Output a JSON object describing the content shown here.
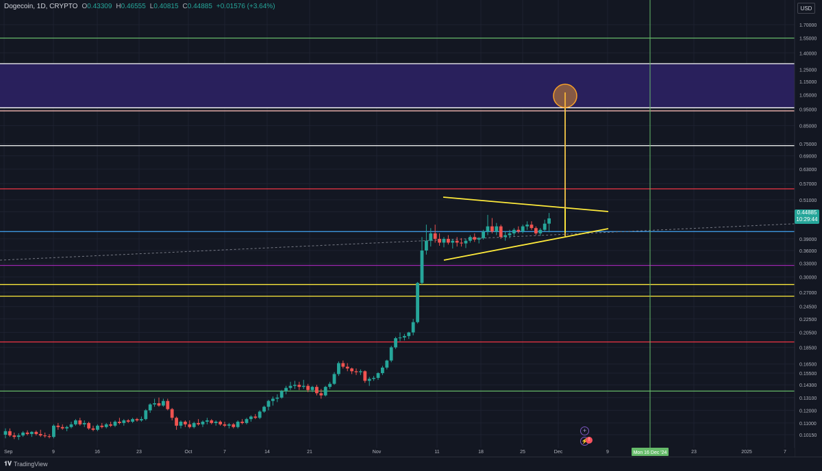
{
  "header": {
    "symbol": "Dogecoin, 1D, CRYPTO",
    "open_label": "O",
    "open": "0.43309",
    "high_label": "H",
    "high": "0.46555",
    "low_label": "L",
    "low": "0.40815",
    "close_label": "C",
    "close": "0.44885",
    "change": "+0.01576 (+3.64%)"
  },
  "currency": "USD",
  "last_price_badge": {
    "price": "0.44885",
    "countdown": "10:29:44"
  },
  "watermark": "TradingView",
  "colors": {
    "up": "#26a69a",
    "down": "#ef5350",
    "background": "#131722",
    "accent": "#f7c948"
  },
  "chart_data": {
    "type": "candlestick",
    "scale": "log",
    "price_axis_ticks": [
      "1.70000",
      "1.55000",
      "1.40000",
      "1.25000",
      "1.15000",
      "1.05000",
      "0.95000",
      "0.85000",
      "0.75000",
      "0.69000",
      "0.63000",
      "0.57000",
      "0.51000",
      "0.47000",
      "0.39000",
      "0.36000",
      "0.33000",
      "0.30000",
      "0.27000",
      "0.24500",
      "0.22500",
      "0.20500",
      "0.18500",
      "0.16500",
      "0.15500",
      "0.14300",
      "0.13100",
      "0.12000",
      "0.11000",
      "0.10150"
    ],
    "time_axis_ticks": [
      "Sep",
      "9",
      "16",
      "23",
      "Oct",
      "7",
      "14",
      "21",
      "Nov",
      "11",
      "18",
      "25",
      "Dec",
      "9",
      "23",
      "2025",
      "7"
    ],
    "crosshair_label": "Mon 16 Dec '24",
    "candles": [
      [
        0.1015,
        0.106,
        0.099,
        0.104
      ],
      [
        0.104,
        0.106,
        0.1,
        0.101
      ],
      [
        0.101,
        0.103,
        0.0985,
        0.1
      ],
      [
        0.1,
        0.1025,
        0.098,
        0.101
      ],
      [
        0.101,
        0.104,
        0.1,
        0.103
      ],
      [
        0.103,
        0.1045,
        0.101,
        0.102
      ],
      [
        0.102,
        0.104,
        0.1,
        0.1035
      ],
      [
        0.1035,
        0.1045,
        0.101,
        0.102
      ],
      [
        0.102,
        0.105,
        0.1,
        0.101
      ],
      [
        0.101,
        0.103,
        0.0995,
        0.1005
      ],
      [
        0.1005,
        0.102,
        0.099,
        0.1
      ],
      [
        0.1,
        0.109,
        0.099,
        0.108
      ],
      [
        0.108,
        0.11,
        0.105,
        0.107
      ],
      [
        0.107,
        0.109,
        0.105,
        0.106
      ],
      [
        0.106,
        0.108,
        0.104,
        0.107
      ],
      [
        0.107,
        0.111,
        0.106,
        0.109
      ],
      [
        0.109,
        0.113,
        0.108,
        0.112
      ],
      [
        0.112,
        0.114,
        0.108,
        0.109
      ],
      [
        0.109,
        0.112,
        0.107,
        0.11
      ],
      [
        0.11,
        0.111,
        0.105,
        0.106
      ],
      [
        0.106,
        0.108,
        0.104,
        0.105
      ],
      [
        0.105,
        0.109,
        0.104,
        0.108
      ],
      [
        0.108,
        0.11,
        0.106,
        0.107
      ],
      [
        0.107,
        0.11,
        0.106,
        0.109
      ],
      [
        0.109,
        0.111,
        0.107,
        0.108
      ],
      [
        0.108,
        0.112,
        0.107,
        0.111
      ],
      [
        0.111,
        0.114,
        0.109,
        0.11
      ],
      [
        0.11,
        0.113,
        0.108,
        0.112
      ],
      [
        0.112,
        0.113,
        0.11,
        0.111
      ],
      [
        0.111,
        0.114,
        0.11,
        0.113
      ],
      [
        0.113,
        0.114,
        0.111,
        0.112
      ],
      [
        0.112,
        0.115,
        0.111,
        0.113
      ],
      [
        0.113,
        0.121,
        0.112,
        0.12
      ],
      [
        0.12,
        0.126,
        0.118,
        0.125
      ],
      [
        0.125,
        0.13,
        0.123,
        0.126
      ],
      [
        0.126,
        0.131,
        0.123,
        0.124
      ],
      [
        0.124,
        0.13,
        0.123,
        0.128
      ],
      [
        0.128,
        0.13,
        0.12,
        0.121
      ],
      [
        0.121,
        0.122,
        0.112,
        0.114
      ],
      [
        0.114,
        0.115,
        0.105,
        0.108
      ],
      [
        0.108,
        0.112,
        0.106,
        0.111
      ],
      [
        0.111,
        0.112,
        0.107,
        0.109
      ],
      [
        0.109,
        0.112,
        0.106,
        0.107
      ],
      [
        0.107,
        0.111,
        0.106,
        0.11
      ],
      [
        0.11,
        0.113,
        0.108,
        0.109
      ],
      [
        0.109,
        0.112,
        0.107,
        0.111
      ],
      [
        0.111,
        0.114,
        0.109,
        0.112
      ],
      [
        0.112,
        0.113,
        0.109,
        0.11
      ],
      [
        0.11,
        0.112,
        0.108,
        0.111
      ],
      [
        0.111,
        0.112,
        0.108,
        0.109
      ],
      [
        0.109,
        0.111,
        0.107,
        0.108
      ],
      [
        0.108,
        0.11,
        0.106,
        0.109
      ],
      [
        0.109,
        0.11,
        0.106,
        0.107
      ],
      [
        0.107,
        0.112,
        0.106,
        0.111
      ],
      [
        0.111,
        0.113,
        0.109,
        0.11
      ],
      [
        0.11,
        0.114,
        0.109,
        0.113
      ],
      [
        0.113,
        0.116,
        0.111,
        0.115
      ],
      [
        0.115,
        0.117,
        0.113,
        0.114
      ],
      [
        0.114,
        0.12,
        0.113,
        0.119
      ],
      [
        0.119,
        0.124,
        0.118,
        0.123
      ],
      [
        0.123,
        0.129,
        0.12,
        0.128
      ],
      [
        0.128,
        0.132,
        0.124,
        0.13
      ],
      [
        0.13,
        0.134,
        0.127,
        0.131
      ],
      [
        0.131,
        0.138,
        0.13,
        0.137
      ],
      [
        0.137,
        0.142,
        0.134,
        0.14
      ],
      [
        0.14,
        0.146,
        0.138,
        0.142
      ],
      [
        0.142,
        0.147,
        0.139,
        0.143
      ],
      [
        0.143,
        0.146,
        0.138,
        0.141
      ],
      [
        0.141,
        0.148,
        0.139,
        0.142
      ],
      [
        0.142,
        0.144,
        0.136,
        0.138
      ],
      [
        0.138,
        0.142,
        0.136,
        0.141
      ],
      [
        0.141,
        0.143,
        0.133,
        0.135
      ],
      [
        0.135,
        0.139,
        0.13,
        0.133
      ],
      [
        0.133,
        0.142,
        0.132,
        0.141
      ],
      [
        0.141,
        0.146,
        0.139,
        0.144
      ],
      [
        0.144,
        0.156,
        0.143,
        0.154
      ],
      [
        0.154,
        0.168,
        0.152,
        0.166
      ],
      [
        0.166,
        0.169,
        0.16,
        0.162
      ],
      [
        0.162,
        0.166,
        0.157,
        0.16
      ],
      [
        0.16,
        0.161,
        0.154,
        0.157
      ],
      [
        0.157,
        0.16,
        0.153,
        0.156
      ],
      [
        0.156,
        0.159,
        0.153,
        0.157
      ],
      [
        0.157,
        0.158,
        0.145,
        0.147
      ],
      [
        0.147,
        0.151,
        0.142,
        0.149
      ],
      [
        0.149,
        0.152,
        0.147,
        0.15
      ],
      [
        0.15,
        0.156,
        0.148,
        0.155
      ],
      [
        0.155,
        0.163,
        0.153,
        0.161
      ],
      [
        0.161,
        0.17,
        0.159,
        0.169
      ],
      [
        0.169,
        0.187,
        0.167,
        0.185
      ],
      [
        0.185,
        0.199,
        0.183,
        0.197
      ],
      [
        0.197,
        0.205,
        0.193,
        0.198
      ],
      [
        0.198,
        0.203,
        0.194,
        0.2
      ],
      [
        0.2,
        0.206,
        0.196,
        0.205
      ],
      [
        0.205,
        0.225,
        0.201,
        0.22
      ],
      [
        0.22,
        0.29,
        0.218,
        0.288
      ],
      [
        0.288,
        0.395,
        0.285,
        0.36
      ],
      [
        0.36,
        0.43,
        0.35,
        0.385
      ],
      [
        0.385,
        0.42,
        0.37,
        0.405
      ],
      [
        0.405,
        0.43,
        0.38,
        0.39
      ],
      [
        0.39,
        0.405,
        0.372,
        0.38
      ],
      [
        0.38,
        0.395,
        0.368,
        0.39
      ],
      [
        0.39,
        0.4,
        0.375,
        0.38
      ],
      [
        0.38,
        0.39,
        0.365,
        0.385
      ],
      [
        0.385,
        0.395,
        0.37,
        0.38
      ],
      [
        0.38,
        0.392,
        0.37,
        0.378
      ],
      [
        0.378,
        0.39,
        0.366,
        0.385
      ],
      [
        0.385,
        0.4,
        0.38,
        0.395
      ],
      [
        0.395,
        0.405,
        0.382,
        0.388
      ],
      [
        0.388,
        0.395,
        0.378,
        0.392
      ],
      [
        0.392,
        0.415,
        0.388,
        0.41
      ],
      [
        0.41,
        0.46,
        0.4,
        0.425
      ],
      [
        0.425,
        0.45,
        0.405,
        0.41
      ],
      [
        0.41,
        0.435,
        0.4,
        0.425
      ],
      [
        0.425,
        0.43,
        0.39,
        0.395
      ],
      [
        0.395,
        0.41,
        0.385,
        0.4
      ],
      [
        0.4,
        0.415,
        0.392,
        0.405
      ],
      [
        0.405,
        0.42,
        0.398,
        0.415
      ],
      [
        0.415,
        0.425,
        0.405,
        0.41
      ],
      [
        0.41,
        0.43,
        0.405,
        0.425
      ],
      [
        0.425,
        0.44,
        0.415,
        0.43
      ],
      [
        0.43,
        0.44,
        0.415,
        0.42
      ],
      [
        0.42,
        0.425,
        0.4,
        0.405
      ],
      [
        0.405,
        0.42,
        0.398,
        0.415
      ],
      [
        0.415,
        0.445,
        0.41,
        0.433
      ],
      [
        0.433,
        0.466,
        0.408,
        0.449
      ]
    ],
    "horizontal_levels": [
      {
        "price": 1.55,
        "color": "#66bb6a"
      },
      {
        "price": 1.3,
        "color": "#ffffff"
      },
      {
        "price": 0.96,
        "color": "#ffffff"
      },
      {
        "price": 0.94,
        "color": "#f5b7b1"
      },
      {
        "price": 0.74,
        "color": "#ffffff"
      },
      {
        "price": 0.55,
        "color": "#f23645"
      },
      {
        "price": 0.41,
        "color": "#42a5f5"
      },
      {
        "price": 0.325,
        "color": "#9c27b0"
      },
      {
        "price": 0.285,
        "color": "#ffeb3b"
      },
      {
        "price": 0.263,
        "color": "#ffeb3b"
      },
      {
        "price": 0.192,
        "color": "#f23645"
      },
      {
        "price": 0.137,
        "color": "#66bb6a"
      }
    ],
    "zone": {
      "from": 0.96,
      "to": 1.3,
      "color": "#2a2160"
    }
  }
}
